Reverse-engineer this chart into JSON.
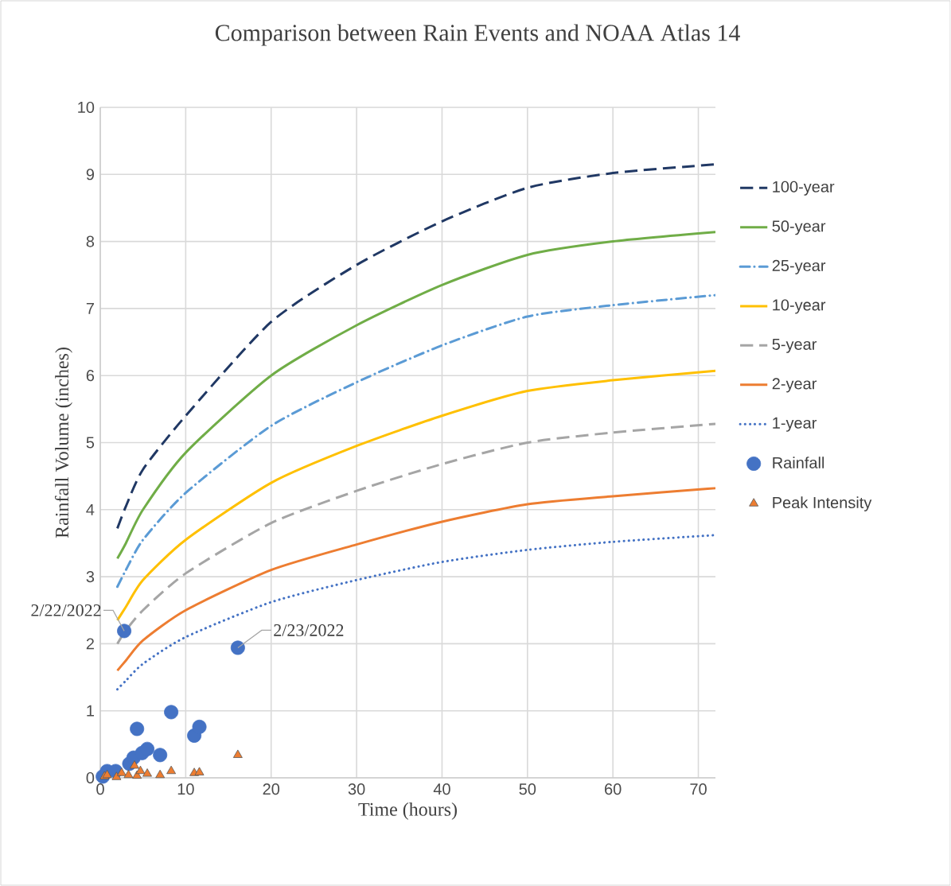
{
  "chart_data": {
    "type": "line",
    "title": "Comparison between Rain Events and NOAA Atlas 14",
    "xlabel": "Time (hours)",
    "ylabel": "Rainfall Volume (inches)",
    "xlim": [
      0,
      72
    ],
    "ylim": [
      0,
      10
    ],
    "xticks": [
      0,
      10,
      20,
      30,
      40,
      50,
      60,
      70
    ],
    "yticks": [
      0,
      1,
      2,
      3,
      4,
      5,
      6,
      7,
      8,
      9,
      10
    ],
    "grid": true,
    "legend": "right",
    "x": [
      2,
      3,
      5,
      10,
      20,
      30,
      40,
      50,
      60,
      72
    ],
    "series": [
      {
        "name": "100-year",
        "color": "#203864",
        "line_style": "dashed",
        "values": [
          3.72,
          4.05,
          4.6,
          5.4,
          6.8,
          7.65,
          8.3,
          8.8,
          9.02,
          9.15
        ]
      },
      {
        "name": "50-year",
        "color": "#70ad47",
        "line_style": "solid",
        "values": [
          3.27,
          3.5,
          4.0,
          4.85,
          6.0,
          6.75,
          7.35,
          7.8,
          8.0,
          8.14
        ]
      },
      {
        "name": "25-year",
        "color": "#5b9bd5",
        "line_style": "dashdot",
        "values": [
          2.85,
          3.1,
          3.55,
          4.25,
          5.25,
          5.9,
          6.45,
          6.88,
          7.05,
          7.2
        ]
      },
      {
        "name": "10-year",
        "color": "#ffc000",
        "line_style": "solid",
        "values": [
          2.35,
          2.55,
          2.95,
          3.55,
          4.4,
          4.95,
          5.4,
          5.77,
          5.93,
          6.07
        ]
      },
      {
        "name": "5-year",
        "color": "#a5a5a5",
        "line_style": "dashed",
        "values": [
          2.0,
          2.2,
          2.5,
          3.05,
          3.8,
          4.28,
          4.68,
          5.0,
          5.15,
          5.28
        ]
      },
      {
        "name": "2-year",
        "color": "#ed7d31",
        "line_style": "solid",
        "values": [
          1.6,
          1.75,
          2.05,
          2.5,
          3.1,
          3.48,
          3.82,
          4.08,
          4.2,
          4.32
        ]
      },
      {
        "name": "1-year",
        "color": "#4472c4",
        "line_style": "dotted",
        "values": [
          1.32,
          1.45,
          1.7,
          2.1,
          2.62,
          2.95,
          3.22,
          3.4,
          3.52,
          3.62
        ]
      },
      {
        "name": "Rainfall",
        "type": "scatter",
        "marker": "circle",
        "color": "#4472c4",
        "x": [
          0.3,
          0.8,
          1.8,
          2.8,
          3.4,
          3.9,
          4.3,
          4.9,
          5.5,
          7.0,
          8.3,
          11.0,
          11.6,
          16.1
        ],
        "values": [
          0.02,
          0.1,
          0.1,
          2.19,
          0.21,
          0.3,
          0.73,
          0.37,
          0.43,
          0.34,
          0.98,
          0.63,
          0.76,
          1.94
        ]
      },
      {
        "name": "Peak Intensity",
        "type": "scatter",
        "marker": "triangle",
        "color": "#ed7d31",
        "x": [
          0.5,
          0.8,
          1.9,
          2.5,
          3.3,
          4.0,
          4.3,
          4.7,
          5.5,
          7.0,
          8.3,
          11.0,
          11.6,
          16.1
        ],
        "values": [
          0.02,
          0.04,
          0.01,
          0.07,
          0.04,
          0.18,
          0.03,
          0.1,
          0.06,
          0.04,
          0.1,
          0.07,
          0.08,
          0.34
        ]
      }
    ],
    "annotations": [
      {
        "text": "2/22/2022",
        "x": 2.8,
        "y": 2.19
      },
      {
        "text": "2/23/2022",
        "x": 16.1,
        "y": 1.94
      }
    ]
  }
}
